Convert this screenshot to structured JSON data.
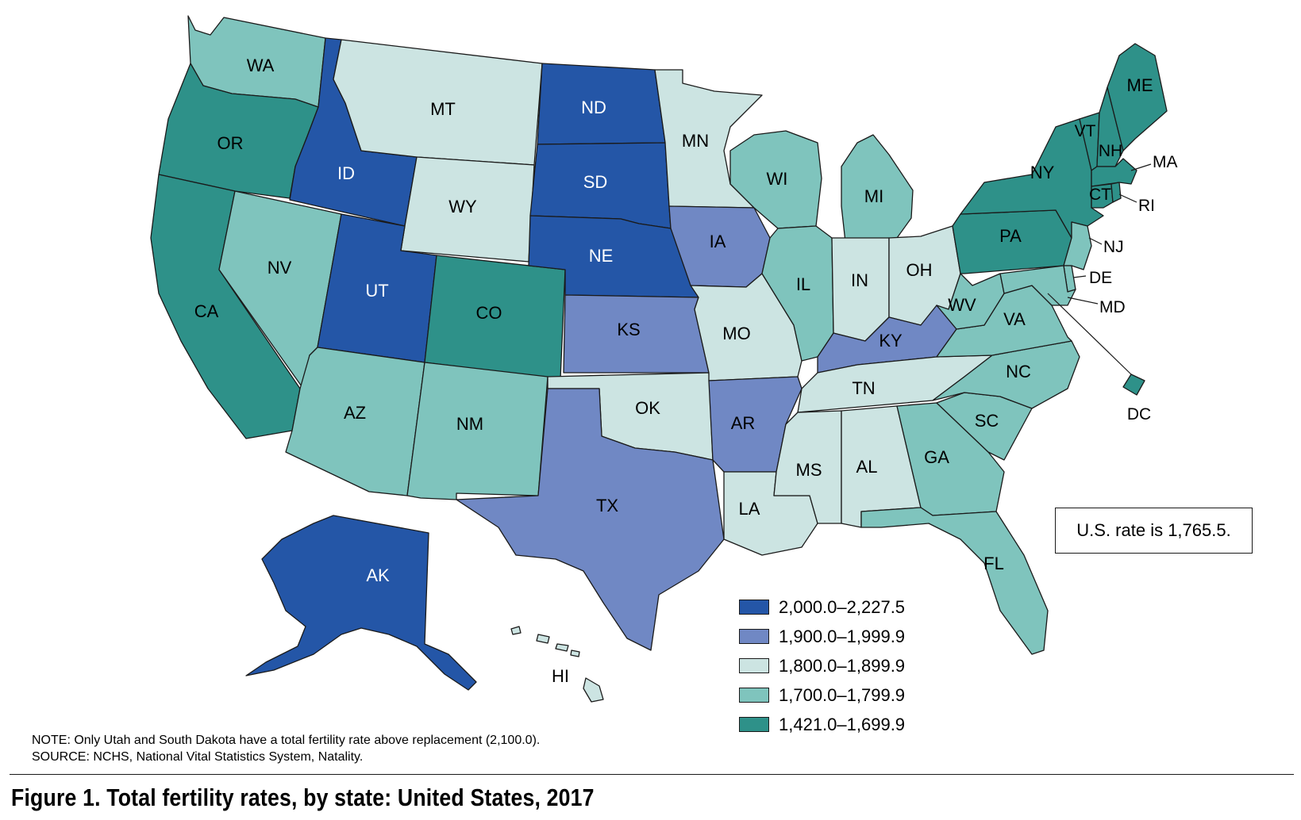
{
  "figure": {
    "title": "Figure 1. Total fertility rates, by state: United States, 2017",
    "note": "NOTE: Only Utah and South Dakota have a total fertility rate above replacement (2,100.0).",
    "source": "SOURCE: NCHS, National Vital Statistics System, Natality."
  },
  "us_rate": "U.S. rate is 1,765.5.",
  "colors": {
    "c1": "#2456a7",
    "c2": "#7088c4",
    "c3": "#cce4e2",
    "c4": "#7fc4bd",
    "c5": "#2e9189"
  },
  "legend": [
    {
      "label": "2,000.0–2,227.5",
      "class": "c1"
    },
    {
      "label": "1,900.0–1,999.9",
      "class": "c2"
    },
    {
      "label": "1,800.0–1,899.9",
      "class": "c3"
    },
    {
      "label": "1,700.0–1,799.9",
      "class": "c4"
    },
    {
      "label": "1,421.0–1,699.9",
      "class": "c5"
    }
  ],
  "states": {
    "WA": {
      "label": "WA",
      "class": "c4"
    },
    "OR": {
      "label": "OR",
      "class": "c5"
    },
    "CA": {
      "label": "CA",
      "class": "c5"
    },
    "ID": {
      "label": "ID",
      "class": "c1"
    },
    "NV": {
      "label": "NV",
      "class": "c4"
    },
    "MT": {
      "label": "MT",
      "class": "c3"
    },
    "WY": {
      "label": "WY",
      "class": "c3"
    },
    "UT": {
      "label": "UT",
      "class": "c1"
    },
    "AZ": {
      "label": "AZ",
      "class": "c4"
    },
    "CO": {
      "label": "CO",
      "class": "c5"
    },
    "NM": {
      "label": "NM",
      "class": "c4"
    },
    "ND": {
      "label": "ND",
      "class": "c1"
    },
    "SD": {
      "label": "SD",
      "class": "c1"
    },
    "NE": {
      "label": "NE",
      "class": "c1"
    },
    "KS": {
      "label": "KS",
      "class": "c2"
    },
    "OK": {
      "label": "OK",
      "class": "c3"
    },
    "TX": {
      "label": "TX",
      "class": "c2"
    },
    "MN": {
      "label": "MN",
      "class": "c3"
    },
    "IA": {
      "label": "IA",
      "class": "c2"
    },
    "MO": {
      "label": "MO",
      "class": "c3"
    },
    "AR": {
      "label": "AR",
      "class": "c2"
    },
    "LA": {
      "label": "LA",
      "class": "c3"
    },
    "WI": {
      "label": "WI",
      "class": "c4"
    },
    "IL": {
      "label": "IL",
      "class": "c4"
    },
    "MI": {
      "label": "MI",
      "class": "c4"
    },
    "IN": {
      "label": "IN",
      "class": "c3"
    },
    "OH": {
      "label": "OH",
      "class": "c3"
    },
    "KY": {
      "label": "KY",
      "class": "c2"
    },
    "TN": {
      "label": "TN",
      "class": "c3"
    },
    "MS": {
      "label": "MS",
      "class": "c3"
    },
    "AL": {
      "label": "AL",
      "class": "c3"
    },
    "GA": {
      "label": "GA",
      "class": "c4"
    },
    "FL": {
      "label": "FL",
      "class": "c4"
    },
    "SC": {
      "label": "SC",
      "class": "c4"
    },
    "NC": {
      "label": "NC",
      "class": "c4"
    },
    "VA": {
      "label": "VA",
      "class": "c4"
    },
    "WV": {
      "label": "WV",
      "class": "c4"
    },
    "PA": {
      "label": "PA",
      "class": "c5"
    },
    "NY": {
      "label": "NY",
      "class": "c5"
    },
    "VT": {
      "label": "VT",
      "class": "c5"
    },
    "NH": {
      "label": "NH",
      "class": "c5"
    },
    "ME": {
      "label": "ME",
      "class": "c5"
    },
    "MA": {
      "label": "MA",
      "class": "c5"
    },
    "CT": {
      "label": "CT",
      "class": "c5"
    },
    "RI": {
      "label": "RI",
      "class": "c5"
    },
    "NJ": {
      "label": "NJ",
      "class": "c4"
    },
    "DE": {
      "label": "DE",
      "class": "c4"
    },
    "MD": {
      "label": "MD",
      "class": "c4"
    },
    "DC": {
      "label": "DC",
      "class": "c5"
    },
    "AK": {
      "label": "AK",
      "class": "c1"
    },
    "HI": {
      "label": "HI",
      "class": "c3"
    }
  }
}
